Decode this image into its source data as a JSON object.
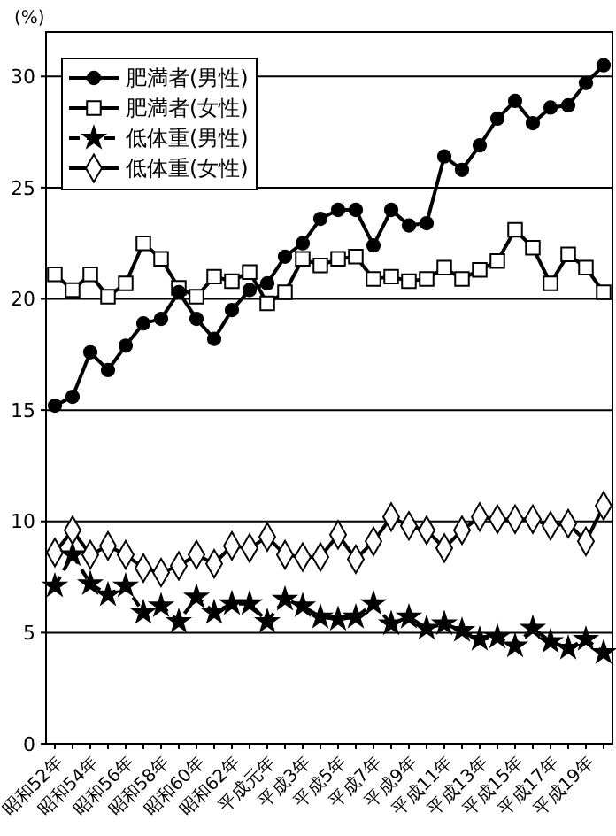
{
  "chart_data": {
    "type": "line",
    "ylabel": "(%)",
    "categories": [
      "昭和52年",
      null,
      "昭和54年",
      null,
      "昭和56年",
      null,
      "昭和58年",
      null,
      "昭和60年",
      null,
      "昭和62年",
      null,
      "平成元年",
      null,
      "平成3年",
      null,
      "平成5年",
      null,
      "平成7年",
      null,
      "平成9年",
      null,
      "平成11年",
      null,
      "平成13年",
      null,
      "平成15年",
      null,
      "平成17年",
      null,
      "平成19年",
      null
    ],
    "ylim": [
      0,
      32
    ],
    "yticks": [
      0,
      5,
      10,
      15,
      20,
      25,
      30
    ],
    "grid": "y",
    "legend": "top left",
    "series": [
      {
        "name": "肥満者(男性)",
        "color": "#000000",
        "marker": "circle",
        "line_style": "solid",
        "values": [
          15.2,
          15.6,
          17.6,
          16.8,
          17.9,
          18.9,
          19.1,
          20.3,
          19.1,
          18.2,
          19.5,
          20.4,
          20.7,
          21.9,
          22.5,
          23.6,
          24.0,
          24.0,
          22.4,
          24.0,
          23.3,
          23.4,
          26.4,
          25.8,
          26.9,
          28.1,
          28.9,
          27.9,
          28.6,
          28.7,
          29.7,
          30.5
        ]
      },
      {
        "name": "肥満者(女性)",
        "color": "#000000",
        "marker": "square",
        "line_style": "solid",
        "values": [
          21.1,
          20.4,
          21.1,
          20.1,
          20.7,
          22.5,
          21.8,
          20.5,
          20.1,
          21.0,
          20.8,
          21.2,
          19.8,
          20.3,
          21.8,
          21.5,
          21.8,
          21.9,
          20.9,
          21.0,
          20.8,
          20.9,
          21.4,
          20.9,
          21.3,
          21.7,
          23.1,
          22.3,
          20.7,
          22.0,
          21.4,
          20.3
        ]
      },
      {
        "name": "低体重(男性)",
        "color": "#000000",
        "marker": "star",
        "line_style": "dashed",
        "values": [
          7.1,
          8.5,
          7.2,
          6.7,
          7.1,
          5.9,
          6.2,
          5.5,
          6.6,
          5.9,
          6.3,
          6.3,
          5.5,
          6.5,
          6.2,
          5.7,
          5.6,
          5.7,
          6.3,
          5.4,
          5.7,
          5.2,
          5.4,
          5.1,
          4.7,
          4.8,
          4.4,
          5.2,
          4.6,
          4.3,
          4.7,
          4.1
        ]
      },
      {
        "name": "低体重(女性)",
        "color": "#000000",
        "marker": "diamond",
        "line_style": "solid",
        "values": [
          8.6,
          9.6,
          8.5,
          8.9,
          8.5,
          7.9,
          7.7,
          8.0,
          8.5,
          8.1,
          8.9,
          8.8,
          9.3,
          8.5,
          8.4,
          8.4,
          9.4,
          8.3,
          9.1,
          10.2,
          9.8,
          9.6,
          8.8,
          9.6,
          10.2,
          10.1,
          10.1,
          10.1,
          9.8,
          9.9,
          9.1,
          10.7
        ]
      }
    ]
  }
}
